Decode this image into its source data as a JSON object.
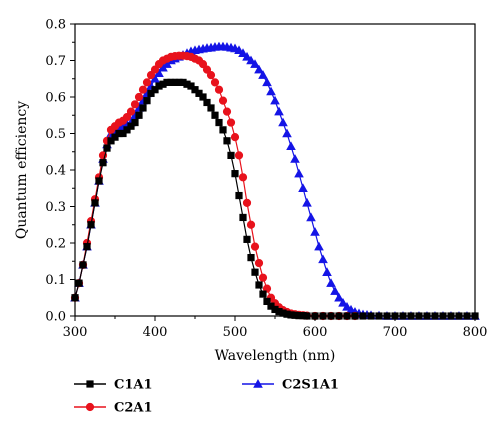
{
  "chart_data": {
    "type": "line",
    "title": "",
    "xlabel": "Wavelength (nm)",
    "ylabel": "Quantum efficiency",
    "xlim": [
      300,
      800
    ],
    "ylim": [
      0,
      0.8
    ],
    "x_ticks": [
      "300",
      "400",
      "500",
      "600",
      "700",
      "800"
    ],
    "y_ticks": [
      "0.0",
      "0.1",
      "0.2",
      "0.3",
      "0.4",
      "0.5",
      "0.6",
      "0.7",
      "0.8"
    ],
    "grid": false,
    "legend_position": "bottom",
    "series": [
      {
        "name": "C1A1",
        "color": "#000000",
        "marker": "square",
        "points": [
          [
            300,
            0.05
          ],
          [
            305,
            0.09
          ],
          [
            310,
            0.14
          ],
          [
            315,
            0.19
          ],
          [
            320,
            0.25
          ],
          [
            325,
            0.31
          ],
          [
            330,
            0.37
          ],
          [
            335,
            0.42
          ],
          [
            340,
            0.46
          ],
          [
            345,
            0.48
          ],
          [
            350,
            0.49
          ],
          [
            355,
            0.5
          ],
          [
            360,
            0.5
          ],
          [
            365,
            0.51
          ],
          [
            370,
            0.52
          ],
          [
            375,
            0.53
          ],
          [
            380,
            0.55
          ],
          [
            385,
            0.57
          ],
          [
            390,
            0.59
          ],
          [
            395,
            0.61
          ],
          [
            400,
            0.62
          ],
          [
            405,
            0.63
          ],
          [
            410,
            0.635
          ],
          [
            415,
            0.64
          ],
          [
            420,
            0.64
          ],
          [
            425,
            0.64
          ],
          [
            430,
            0.64
          ],
          [
            435,
            0.64
          ],
          [
            440,
            0.635
          ],
          [
            445,
            0.63
          ],
          [
            450,
            0.62
          ],
          [
            455,
            0.61
          ],
          [
            460,
            0.6
          ],
          [
            465,
            0.585
          ],
          [
            470,
            0.57
          ],
          [
            475,
            0.55
          ],
          [
            480,
            0.53
          ],
          [
            485,
            0.51
          ],
          [
            490,
            0.48
          ],
          [
            495,
            0.44
          ],
          [
            500,
            0.39
          ],
          [
            505,
            0.33
          ],
          [
            510,
            0.27
          ],
          [
            515,
            0.21
          ],
          [
            520,
            0.16
          ],
          [
            525,
            0.12
          ],
          [
            530,
            0.085
          ],
          [
            535,
            0.06
          ],
          [
            540,
            0.04
          ],
          [
            545,
            0.027
          ],
          [
            550,
            0.018
          ],
          [
            555,
            0.012
          ],
          [
            560,
            0.008
          ],
          [
            565,
            0.005
          ],
          [
            570,
            0.003
          ],
          [
            575,
            0.002
          ],
          [
            580,
            0.001
          ],
          [
            585,
            0.001
          ],
          [
            590,
            0.0
          ],
          [
            600,
            0.0
          ],
          [
            610,
            0.0
          ],
          [
            620,
            0.0
          ],
          [
            630,
            0.0
          ],
          [
            640,
            0.0
          ],
          [
            650,
            0.0
          ],
          [
            660,
            0.0
          ],
          [
            670,
            0.0
          ],
          [
            680,
            0.0
          ],
          [
            690,
            0.0
          ],
          [
            700,
            0.0
          ],
          [
            710,
            0.0
          ],
          [
            720,
            0.0
          ],
          [
            730,
            0.0
          ],
          [
            740,
            0.0
          ],
          [
            750,
            0.0
          ],
          [
            760,
            0.0
          ],
          [
            770,
            0.0
          ],
          [
            780,
            0.0
          ],
          [
            790,
            0.0
          ],
          [
            800,
            0.0
          ]
        ]
      },
      {
        "name": "C2A1",
        "color": "#e8121c",
        "marker": "circle",
        "points": [
          [
            300,
            0.05
          ],
          [
            305,
            0.09
          ],
          [
            310,
            0.14
          ],
          [
            315,
            0.2
          ],
          [
            320,
            0.26
          ],
          [
            325,
            0.32
          ],
          [
            330,
            0.38
          ],
          [
            335,
            0.44
          ],
          [
            340,
            0.48
          ],
          [
            345,
            0.51
          ],
          [
            350,
            0.52
          ],
          [
            355,
            0.53
          ],
          [
            360,
            0.535
          ],
          [
            365,
            0.545
          ],
          [
            370,
            0.56
          ],
          [
            375,
            0.58
          ],
          [
            380,
            0.6
          ],
          [
            385,
            0.62
          ],
          [
            390,
            0.64
          ],
          [
            395,
            0.66
          ],
          [
            400,
            0.675
          ],
          [
            405,
            0.69
          ],
          [
            410,
            0.7
          ],
          [
            415,
            0.705
          ],
          [
            420,
            0.71
          ],
          [
            425,
            0.712
          ],
          [
            430,
            0.713
          ],
          [
            435,
            0.713
          ],
          [
            440,
            0.712
          ],
          [
            445,
            0.71
          ],
          [
            450,
            0.705
          ],
          [
            455,
            0.7
          ],
          [
            460,
            0.69
          ],
          [
            465,
            0.675
          ],
          [
            470,
            0.66
          ],
          [
            475,
            0.64
          ],
          [
            480,
            0.62
          ],
          [
            485,
            0.59
          ],
          [
            490,
            0.56
          ],
          [
            495,
            0.53
          ],
          [
            500,
            0.49
          ],
          [
            505,
            0.44
          ],
          [
            510,
            0.38
          ],
          [
            515,
            0.31
          ],
          [
            520,
            0.25
          ],
          [
            525,
            0.19
          ],
          [
            530,
            0.145
          ],
          [
            535,
            0.105
          ],
          [
            540,
            0.075
          ],
          [
            545,
            0.05
          ],
          [
            550,
            0.035
          ],
          [
            555,
            0.024
          ],
          [
            560,
            0.016
          ],
          [
            565,
            0.011
          ],
          [
            570,
            0.007
          ],
          [
            575,
            0.005
          ],
          [
            580,
            0.003
          ],
          [
            585,
            0.002
          ],
          [
            590,
            0.001
          ],
          [
            600,
            0.0
          ],
          [
            610,
            0.0
          ],
          [
            620,
            0.0
          ],
          [
            630,
            0.0
          ],
          [
            640,
            0.0
          ],
          [
            650,
            0.0
          ]
        ]
      },
      {
        "name": "C2S1A1",
        "color": "#1414e6",
        "marker": "triangle",
        "points": [
          [
            300,
            0.05
          ],
          [
            305,
            0.09
          ],
          [
            310,
            0.14
          ],
          [
            315,
            0.19
          ],
          [
            320,
            0.25
          ],
          [
            325,
            0.31
          ],
          [
            330,
            0.37
          ],
          [
            335,
            0.43
          ],
          [
            340,
            0.47
          ],
          [
            345,
            0.5
          ],
          [
            350,
            0.51
          ],
          [
            355,
            0.515
          ],
          [
            360,
            0.52
          ],
          [
            365,
            0.525
          ],
          [
            370,
            0.53
          ],
          [
            375,
            0.55
          ],
          [
            380,
            0.57
          ],
          [
            385,
            0.59
          ],
          [
            390,
            0.61
          ],
          [
            395,
            0.63
          ],
          [
            400,
            0.65
          ],
          [
            405,
            0.665
          ],
          [
            410,
            0.68
          ],
          [
            415,
            0.69
          ],
          [
            420,
            0.7
          ],
          [
            425,
            0.705
          ],
          [
            430,
            0.71
          ],
          [
            435,
            0.715
          ],
          [
            440,
            0.72
          ],
          [
            445,
            0.725
          ],
          [
            450,
            0.728
          ],
          [
            455,
            0.73
          ],
          [
            460,
            0.732
          ],
          [
            465,
            0.734
          ],
          [
            470,
            0.735
          ],
          [
            475,
            0.737
          ],
          [
            480,
            0.738
          ],
          [
            485,
            0.738
          ],
          [
            490,
            0.737
          ],
          [
            495,
            0.735
          ],
          [
            500,
            0.733
          ],
          [
            505,
            0.728
          ],
          [
            510,
            0.72
          ],
          [
            515,
            0.71
          ],
          [
            520,
            0.7
          ],
          [
            525,
            0.69
          ],
          [
            530,
            0.675
          ],
          [
            535,
            0.66
          ],
          [
            540,
            0.64
          ],
          [
            545,
            0.615
          ],
          [
            550,
            0.59
          ],
          [
            555,
            0.56
          ],
          [
            560,
            0.53
          ],
          [
            565,
            0.5
          ],
          [
            570,
            0.465
          ],
          [
            575,
            0.43
          ],
          [
            580,
            0.39
          ],
          [
            585,
            0.35
          ],
          [
            590,
            0.31
          ],
          [
            595,
            0.27
          ],
          [
            600,
            0.23
          ],
          [
            605,
            0.19
          ],
          [
            610,
            0.155
          ],
          [
            615,
            0.12
          ],
          [
            620,
            0.09
          ],
          [
            625,
            0.068
          ],
          [
            630,
            0.05
          ],
          [
            635,
            0.036
          ],
          [
            640,
            0.025
          ],
          [
            645,
            0.017
          ],
          [
            650,
            0.011
          ],
          [
            655,
            0.007
          ],
          [
            660,
            0.004
          ],
          [
            665,
            0.003
          ],
          [
            670,
            0.002
          ],
          [
            680,
            0.001
          ],
          [
            690,
            0.0
          ],
          [
            700,
            0.0
          ],
          [
            710,
            0.0
          ],
          [
            720,
            0.0
          ],
          [
            730,
            0.0
          ],
          [
            740,
            0.0
          ],
          [
            750,
            0.0
          ],
          [
            760,
            0.0
          ],
          [
            770,
            0.0
          ],
          [
            780,
            0.0
          ],
          [
            790,
            0.0
          ],
          [
            800,
            0.0
          ]
        ]
      }
    ]
  }
}
